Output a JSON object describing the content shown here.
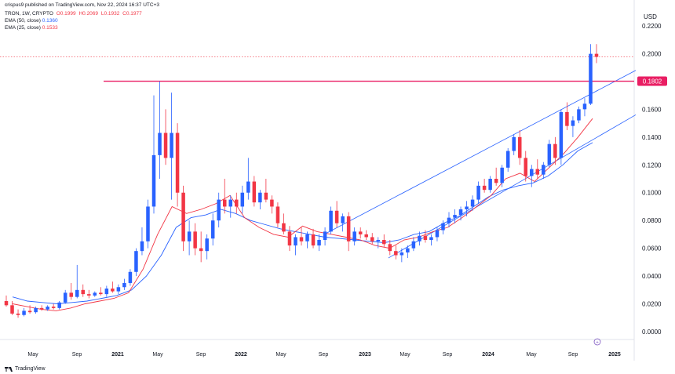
{
  "header": {
    "publisher_line": "crispus9 published on TradingView.com, Nov 22, 2024 16:37 UTC+3",
    "symbol": "TRON, 1W, CRYPTO",
    "open": "O0.1999",
    "high": "H0.2069",
    "low": "L0.1932",
    "close": "C0.1977",
    "ema50_label": "EMA (50, close)",
    "ema50_value": "0.1360",
    "ema25_label": "EMA (25, close)",
    "ema25_value": "0.1533"
  },
  "footer": {
    "brand": "TradingView"
  },
  "colors": {
    "up": "#2962ff",
    "down": "#f23645",
    "ema50": "#2962ff",
    "ema25": "#f23645",
    "resistance": "#e91e63",
    "channel": "#2962ff",
    "ohlc_up": "#f23645"
  },
  "chart_data": {
    "type": "candlestick",
    "title": "",
    "xlabel": "",
    "ylabel": "USD",
    "ylim": [
      -0.01,
      0.225
    ],
    "grid": false,
    "y_ticks": [
      "0.2200",
      "0.2000",
      "0.1800",
      "0.1600",
      "0.1400",
      "0.1200",
      "0.1000",
      "0.0800",
      "0.0600",
      "0.0400",
      "0.0200",
      "0.0000"
    ],
    "x_ticks": [
      "May",
      "Sep",
      "2021",
      "May",
      "Sep",
      "2022",
      "May",
      "Sep",
      "2023",
      "May",
      "Sep",
      "2024",
      "May",
      "Sep",
      "2025"
    ],
    "price_label": "0.1802",
    "resistance_level": 0.1802,
    "last_price": 0.1977,
    "series": [
      {
        "name": "EMA (50, close)",
        "values": [
          0.025,
          0.022,
          0.021,
          0.02,
          0.021,
          0.022,
          0.024,
          0.026,
          0.03,
          0.04,
          0.055,
          0.075,
          0.082,
          0.084,
          0.088,
          0.085,
          0.08,
          0.077,
          0.074,
          0.072,
          0.07,
          0.068,
          0.067,
          0.066,
          0.065,
          0.064,
          0.066,
          0.07,
          0.072,
          0.078,
          0.083,
          0.09,
          0.097,
          0.102,
          0.105,
          0.107,
          0.112,
          0.12,
          0.13,
          0.136
        ]
      },
      {
        "name": "EMA (25, close)",
        "values": [
          0.02,
          0.018,
          0.016,
          0.015,
          0.017,
          0.02,
          0.022,
          0.024,
          0.028,
          0.045,
          0.07,
          0.09,
          0.085,
          0.088,
          0.092,
          0.098,
          0.082,
          0.075,
          0.07,
          0.068,
          0.076,
          0.072,
          0.07,
          0.068,
          0.066,
          0.062,
          0.06,
          0.066,
          0.068,
          0.072,
          0.075,
          0.082,
          0.09,
          0.098,
          0.11,
          0.114,
          0.108,
          0.118,
          0.128,
          0.14,
          0.1533
        ]
      }
    ],
    "trendlines": [
      {
        "name": "channel-upper",
        "points": [
          [
            0.1,
            0.071
          ],
          [
            1.0,
            0.188
          ]
        ]
      },
      {
        "name": "channel-lower",
        "points": [
          [
            0.2,
            0.053
          ],
          [
            1.0,
            0.156
          ]
        ]
      }
    ],
    "candles": [
      {
        "o": 0.022,
        "h": 0.026,
        "l": 0.018,
        "c": 0.019
      },
      {
        "o": 0.019,
        "h": 0.022,
        "l": 0.012,
        "c": 0.013
      },
      {
        "o": 0.013,
        "h": 0.016,
        "l": 0.01,
        "c": 0.012
      },
      {
        "o": 0.012,
        "h": 0.017,
        "l": 0.011,
        "c": 0.015
      },
      {
        "o": 0.015,
        "h": 0.019,
        "l": 0.013,
        "c": 0.014
      },
      {
        "o": 0.014,
        "h": 0.018,
        "l": 0.013,
        "c": 0.017
      },
      {
        "o": 0.017,
        "h": 0.019,
        "l": 0.015,
        "c": 0.016
      },
      {
        "o": 0.016,
        "h": 0.019,
        "l": 0.015,
        "c": 0.018
      },
      {
        "o": 0.018,
        "h": 0.02,
        "l": 0.016,
        "c": 0.017
      },
      {
        "o": 0.017,
        "h": 0.022,
        "l": 0.016,
        "c": 0.021
      },
      {
        "o": 0.021,
        "h": 0.03,
        "l": 0.02,
        "c": 0.028
      },
      {
        "o": 0.028,
        "h": 0.035,
        "l": 0.023,
        "c": 0.025
      },
      {
        "o": 0.025,
        "h": 0.048,
        "l": 0.024,
        "c": 0.03
      },
      {
        "o": 0.03,
        "h": 0.034,
        "l": 0.025,
        "c": 0.027
      },
      {
        "o": 0.027,
        "h": 0.03,
        "l": 0.024,
        "c": 0.026
      },
      {
        "o": 0.026,
        "h": 0.029,
        "l": 0.025,
        "c": 0.028
      },
      {
        "o": 0.028,
        "h": 0.032,
        "l": 0.026,
        "c": 0.027
      },
      {
        "o": 0.027,
        "h": 0.033,
        "l": 0.025,
        "c": 0.031
      },
      {
        "o": 0.031,
        "h": 0.036,
        "l": 0.028,
        "c": 0.029
      },
      {
        "o": 0.029,
        "h": 0.034,
        "l": 0.027,
        "c": 0.032
      },
      {
        "o": 0.032,
        "h": 0.038,
        "l": 0.03,
        "c": 0.035
      },
      {
        "o": 0.035,
        "h": 0.045,
        "l": 0.033,
        "c": 0.043
      },
      {
        "o": 0.043,
        "h": 0.06,
        "l": 0.04,
        "c": 0.058
      },
      {
        "o": 0.058,
        "h": 0.075,
        "l": 0.055,
        "c": 0.065
      },
      {
        "o": 0.065,
        "h": 0.095,
        "l": 0.06,
        "c": 0.09
      },
      {
        "o": 0.09,
        "h": 0.17,
        "l": 0.085,
        "c": 0.127
      },
      {
        "o": 0.127,
        "h": 0.18,
        "l": 0.11,
        "c": 0.143
      },
      {
        "o": 0.143,
        "h": 0.16,
        "l": 0.12,
        "c": 0.125
      },
      {
        "o": 0.125,
        "h": 0.172,
        "l": 0.095,
        "c": 0.143
      },
      {
        "o": 0.143,
        "h": 0.15,
        "l": 0.09,
        "c": 0.1
      },
      {
        "o": 0.1,
        "h": 0.105,
        "l": 0.058,
        "c": 0.065
      },
      {
        "o": 0.065,
        "h": 0.08,
        "l": 0.055,
        "c": 0.072
      },
      {
        "o": 0.072,
        "h": 0.078,
        "l": 0.055,
        "c": 0.06
      },
      {
        "o": 0.06,
        "h": 0.072,
        "l": 0.05,
        "c": 0.058
      },
      {
        "o": 0.058,
        "h": 0.07,
        "l": 0.052,
        "c": 0.067
      },
      {
        "o": 0.067,
        "h": 0.085,
        "l": 0.062,
        "c": 0.08
      },
      {
        "o": 0.08,
        "h": 0.1,
        "l": 0.075,
        "c": 0.095
      },
      {
        "o": 0.095,
        "h": 0.11,
        "l": 0.085,
        "c": 0.09
      },
      {
        "o": 0.09,
        "h": 0.098,
        "l": 0.082,
        "c": 0.095
      },
      {
        "o": 0.095,
        "h": 0.1,
        "l": 0.085,
        "c": 0.09
      },
      {
        "o": 0.09,
        "h": 0.105,
        "l": 0.085,
        "c": 0.1
      },
      {
        "o": 0.1,
        "h": 0.125,
        "l": 0.095,
        "c": 0.108
      },
      {
        "o": 0.108,
        "h": 0.112,
        "l": 0.09,
        "c": 0.093
      },
      {
        "o": 0.093,
        "h": 0.102,
        "l": 0.088,
        "c": 0.1
      },
      {
        "o": 0.1,
        "h": 0.11,
        "l": 0.093,
        "c": 0.095
      },
      {
        "o": 0.095,
        "h": 0.098,
        "l": 0.085,
        "c": 0.09
      },
      {
        "o": 0.09,
        "h": 0.093,
        "l": 0.075,
        "c": 0.078
      },
      {
        "o": 0.078,
        "h": 0.085,
        "l": 0.07,
        "c": 0.072
      },
      {
        "o": 0.072,
        "h": 0.076,
        "l": 0.058,
        "c": 0.062
      },
      {
        "o": 0.062,
        "h": 0.07,
        "l": 0.055,
        "c": 0.068
      },
      {
        "o": 0.068,
        "h": 0.075,
        "l": 0.062,
        "c": 0.065
      },
      {
        "o": 0.065,
        "h": 0.072,
        "l": 0.06,
        "c": 0.07
      },
      {
        "o": 0.07,
        "h": 0.074,
        "l": 0.06,
        "c": 0.062
      },
      {
        "o": 0.062,
        "h": 0.07,
        "l": 0.058,
        "c": 0.066
      },
      {
        "o": 0.066,
        "h": 0.075,
        "l": 0.062,
        "c": 0.072
      },
      {
        "o": 0.072,
        "h": 0.09,
        "l": 0.07,
        "c": 0.087
      },
      {
        "o": 0.087,
        "h": 0.094,
        "l": 0.075,
        "c": 0.078
      },
      {
        "o": 0.078,
        "h": 0.085,
        "l": 0.072,
        "c": 0.083
      },
      {
        "o": 0.083,
        "h": 0.086,
        "l": 0.058,
        "c": 0.065
      },
      {
        "o": 0.065,
        "h": 0.075,
        "l": 0.062,
        "c": 0.072
      },
      {
        "o": 0.072,
        "h": 0.075,
        "l": 0.067,
        "c": 0.07
      },
      {
        "o": 0.07,
        "h": 0.073,
        "l": 0.066,
        "c": 0.068
      },
      {
        "o": 0.068,
        "h": 0.071,
        "l": 0.063,
        "c": 0.065
      },
      {
        "o": 0.065,
        "h": 0.068,
        "l": 0.06,
        "c": 0.066
      },
      {
        "o": 0.066,
        "h": 0.07,
        "l": 0.061,
        "c": 0.063
      },
      {
        "o": 0.063,
        "h": 0.066,
        "l": 0.055,
        "c": 0.058
      },
      {
        "o": 0.058,
        "h": 0.062,
        "l": 0.052,
        "c": 0.055
      },
      {
        "o": 0.055,
        "h": 0.06,
        "l": 0.05,
        "c": 0.057
      },
      {
        "o": 0.057,
        "h": 0.062,
        "l": 0.053,
        "c": 0.06
      },
      {
        "o": 0.06,
        "h": 0.068,
        "l": 0.058,
        "c": 0.065
      },
      {
        "o": 0.065,
        "h": 0.072,
        "l": 0.062,
        "c": 0.069
      },
      {
        "o": 0.069,
        "h": 0.073,
        "l": 0.064,
        "c": 0.066
      },
      {
        "o": 0.066,
        "h": 0.07,
        "l": 0.062,
        "c": 0.068
      },
      {
        "o": 0.068,
        "h": 0.075,
        "l": 0.065,
        "c": 0.073
      },
      {
        "o": 0.073,
        "h": 0.08,
        "l": 0.07,
        "c": 0.078
      },
      {
        "o": 0.078,
        "h": 0.086,
        "l": 0.075,
        "c": 0.082
      },
      {
        "o": 0.082,
        "h": 0.088,
        "l": 0.078,
        "c": 0.084
      },
      {
        "o": 0.084,
        "h": 0.09,
        "l": 0.08,
        "c": 0.088
      },
      {
        "o": 0.088,
        "h": 0.094,
        "l": 0.083,
        "c": 0.09
      },
      {
        "o": 0.09,
        "h": 0.098,
        "l": 0.087,
        "c": 0.095
      },
      {
        "o": 0.095,
        "h": 0.108,
        "l": 0.092,
        "c": 0.105
      },
      {
        "o": 0.105,
        "h": 0.11,
        "l": 0.1,
        "c": 0.102
      },
      {
        "o": 0.102,
        "h": 0.112,
        "l": 0.1,
        "c": 0.11
      },
      {
        "o": 0.11,
        "h": 0.118,
        "l": 0.105,
        "c": 0.107
      },
      {
        "o": 0.107,
        "h": 0.12,
        "l": 0.104,
        "c": 0.118
      },
      {
        "o": 0.118,
        "h": 0.132,
        "l": 0.115,
        "c": 0.13
      },
      {
        "o": 0.13,
        "h": 0.142,
        "l": 0.127,
        "c": 0.14
      },
      {
        "o": 0.14,
        "h": 0.145,
        "l": 0.12,
        "c": 0.125
      },
      {
        "o": 0.125,
        "h": 0.13,
        "l": 0.108,
        "c": 0.112
      },
      {
        "o": 0.112,
        "h": 0.12,
        "l": 0.104,
        "c": 0.117
      },
      {
        "o": 0.117,
        "h": 0.124,
        "l": 0.11,
        "c": 0.113
      },
      {
        "o": 0.113,
        "h": 0.122,
        "l": 0.11,
        "c": 0.12
      },
      {
        "o": 0.12,
        "h": 0.138,
        "l": 0.118,
        "c": 0.135
      },
      {
        "o": 0.135,
        "h": 0.14,
        "l": 0.12,
        "c": 0.125
      },
      {
        "o": 0.125,
        "h": 0.16,
        "l": 0.12,
        "c": 0.158
      },
      {
        "o": 0.158,
        "h": 0.165,
        "l": 0.145,
        "c": 0.148
      },
      {
        "o": 0.148,
        "h": 0.155,
        "l": 0.14,
        "c": 0.152
      },
      {
        "o": 0.152,
        "h": 0.162,
        "l": 0.15,
        "c": 0.16
      },
      {
        "o": 0.16,
        "h": 0.168,
        "l": 0.155,
        "c": 0.164
      },
      {
        "o": 0.164,
        "h": 0.2069,
        "l": 0.163,
        "c": 0.1999
      },
      {
        "o": 0.1999,
        "h": 0.2069,
        "l": 0.1932,
        "c": 0.1977
      }
    ]
  }
}
